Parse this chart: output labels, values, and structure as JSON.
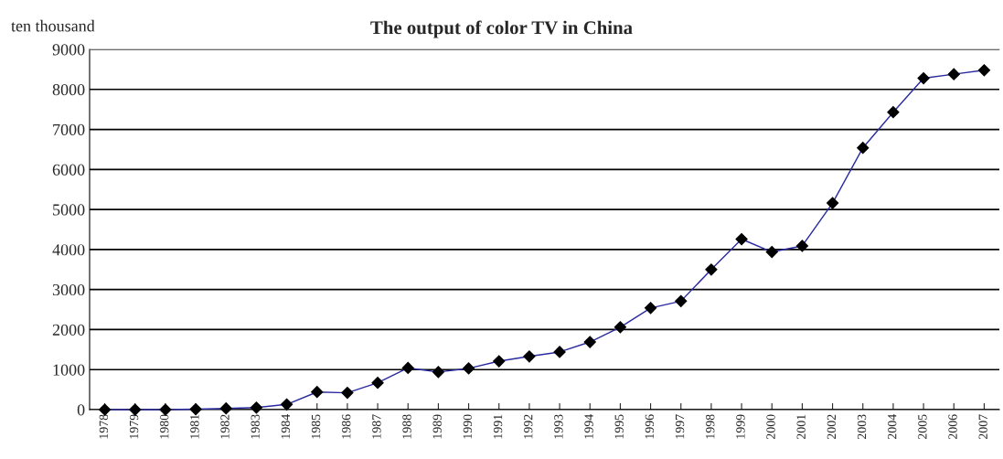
{
  "chart_data": {
    "type": "line",
    "title": "The output of color TV in China",
    "ylabel": "ten thousand",
    "categories": [
      "1978",
      "1979",
      "1980",
      "1981",
      "1982",
      "1983",
      "1984",
      "1985",
      "1986",
      "1987",
      "1988",
      "1989",
      "1990",
      "1991",
      "1992",
      "1993",
      "1994",
      "1995",
      "1996",
      "1997",
      "1998",
      "1999",
      "2000",
      "2001",
      "2002",
      "2003",
      "2004",
      "2005",
      "2006",
      "2007"
    ],
    "series": [
      {
        "color": "#2a2aa0",
        "values": [
          0,
          0,
          0,
          10,
          30,
          50,
          130,
          440,
          420,
          670,
          1040,
          940,
          1030,
          1210,
          1330,
          1440,
          1690,
          2060,
          2540,
          2710,
          3500,
          4260,
          3940,
          4090,
          5160,
          6540,
          7430,
          8280,
          8380,
          8480
        ]
      }
    ],
    "ylim": [
      0,
      9000
    ],
    "yticks": [
      0,
      1000,
      2000,
      3000,
      4000,
      5000,
      6000,
      7000,
      8000,
      9000
    ],
    "grid": "y",
    "marker": "diamond",
    "line_style": "solid",
    "legend": false
  }
}
